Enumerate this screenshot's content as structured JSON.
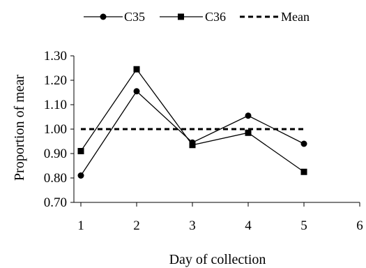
{
  "chart_data": {
    "type": "line",
    "title": "",
    "xlabel": "Day of collection",
    "ylabel": "Proportion of mear",
    "x_ticks": [
      "1",
      "2",
      "3",
      "4",
      "5",
      "6"
    ],
    "y_ticks": [
      "0.70",
      "0.80",
      "0.90",
      "1.00",
      "1.10",
      "1.20",
      "1.30"
    ],
    "xlim": [
      1,
      6
    ],
    "ylim": [
      0.7,
      1.3
    ],
    "grid": false,
    "legend_position": "top",
    "series": [
      {
        "name": "C35",
        "marker": "circle",
        "style": "solid",
        "x": [
          1,
          2,
          3,
          4,
          5
        ],
        "values": [
          0.81,
          1.155,
          0.945,
          1.055,
          0.94
        ]
      },
      {
        "name": "C36",
        "marker": "square",
        "style": "solid",
        "x": [
          1,
          2,
          3,
          4,
          5
        ],
        "values": [
          0.91,
          1.245,
          0.935,
          0.985,
          0.825
        ]
      },
      {
        "name": "Mean",
        "marker": "none",
        "style": "dashed",
        "x": [
          1,
          5
        ],
        "values": [
          1.0,
          1.0
        ]
      }
    ]
  }
}
